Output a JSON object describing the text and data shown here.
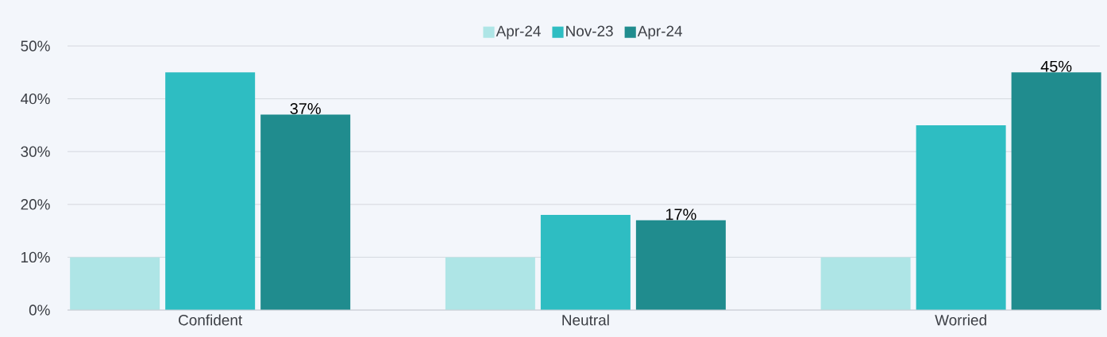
{
  "chart_data": {
    "type": "bar",
    "categories": [
      "Confident",
      "Neutral",
      "Worried"
    ],
    "series": [
      {
        "name": "Apr-24",
        "color": "#aee5e6",
        "values": [
          10,
          10,
          10
        ]
      },
      {
        "name": "Nov-23",
        "color": "#2ebdc2",
        "values": [
          45,
          18,
          35
        ]
      },
      {
        "name": "Apr-24",
        "color": "#208c8e",
        "values": [
          37,
          17,
          45
        ],
        "value_labels": [
          "37%",
          "17%",
          "45%"
        ]
      }
    ],
    "ylim": [
      0,
      50
    ],
    "yticks": [
      {
        "value": 0,
        "label": "0%"
      },
      {
        "value": 10,
        "label": "10%"
      },
      {
        "value": 20,
        "label": "20%"
      },
      {
        "value": 30,
        "label": "30%"
      },
      {
        "value": 40,
        "label": "40%"
      },
      {
        "value": 50,
        "label": "50%"
      }
    ],
    "grid": "y",
    "legend": "top"
  }
}
